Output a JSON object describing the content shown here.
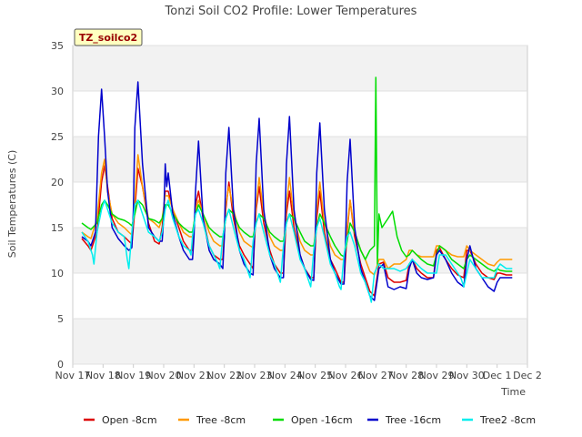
{
  "chart_data": {
    "type": "line",
    "title": "Tonzi Soil CO2 Profile: Lower Temperatures",
    "badge": "TZ_soilco2",
    "xlabel": "Time",
    "ylabel": "Soil Temperatures (C)",
    "xlim": [
      0,
      15
    ],
    "ylim": [
      0,
      35
    ],
    "x_ticks": [
      {
        "v": 0,
        "label": "Nov 17"
      },
      {
        "v": 1,
        "label": "Nov 18"
      },
      {
        "v": 2,
        "label": "Nov 19"
      },
      {
        "v": 3,
        "label": "Nov 20"
      },
      {
        "v": 4,
        "label": "Nov 21"
      },
      {
        "v": 5,
        "label": "Nov 22"
      },
      {
        "v": 6,
        "label": "Nov 23"
      },
      {
        "v": 7,
        "label": "Nov 24"
      },
      {
        "v": 8,
        "label": "Nov 25"
      },
      {
        "v": 9,
        "label": "Nov 26"
      },
      {
        "v": 10,
        "label": "Nov 27"
      },
      {
        "v": 11,
        "label": "Nov 28"
      },
      {
        "v": 12,
        "label": "Nov 29"
      },
      {
        "v": 13,
        "label": "Nov 30"
      },
      {
        "v": 14,
        "label": "Dec 1"
      },
      {
        "v": 15,
        "label": "Dec 2"
      }
    ],
    "y_ticks": [
      0,
      5,
      10,
      15,
      20,
      25,
      30,
      35
    ],
    "series": [
      {
        "name": "Open -8cm",
        "color": "#dd0000",
        "x": [
          0.3,
          0.5,
          0.6,
          0.8,
          0.95,
          1.05,
          1.15,
          1.3,
          1.5,
          1.7,
          1.85,
          1.95,
          2.05,
          2.15,
          2.3,
          2.5,
          2.7,
          2.85,
          2.95,
          3.05,
          3.15,
          3.3,
          3.5,
          3.65,
          3.85,
          3.95,
          4.05,
          4.15,
          4.3,
          4.5,
          4.65,
          4.85,
          4.95,
          5.05,
          5.15,
          5.3,
          5.5,
          5.65,
          5.85,
          5.95,
          6.05,
          6.15,
          6.3,
          6.5,
          6.65,
          6.85,
          6.95,
          7.05,
          7.15,
          7.3,
          7.5,
          7.65,
          7.85,
          7.95,
          8.05,
          8.15,
          8.3,
          8.5,
          8.65,
          8.85,
          8.95,
          9.05,
          9.15,
          9.3,
          9.5,
          9.65,
          9.8,
          9.95,
          10.1,
          10.25,
          10.4,
          10.6,
          10.8,
          11.0,
          11.1,
          11.2,
          11.35,
          11.5,
          11.7,
          11.9,
          12.0,
          12.1,
          12.3,
          12.5,
          12.7,
          12.9,
          13.0,
          13.1,
          13.3,
          13.5,
          13.7,
          13.9,
          14.0,
          14.1,
          14.3,
          14.5
        ],
        "y": [
          13.8,
          13.0,
          12.5,
          14.5,
          20.0,
          21.8,
          19.5,
          16.0,
          14.5,
          14.0,
          13.5,
          13.2,
          17.0,
          21.5,
          19.5,
          15.5,
          13.5,
          13.2,
          15.0,
          19.0,
          19.0,
          17.0,
          15.0,
          13.5,
          12.5,
          12.5,
          17.5,
          19.0,
          16.0,
          13.0,
          12.0,
          11.5,
          11.5,
          17.0,
          20.0,
          16.0,
          13.0,
          12.0,
          11.0,
          10.5,
          17.0,
          19.5,
          15.5,
          12.5,
          11.0,
          10.0,
          10.0,
          16.5,
          19.0,
          15.0,
          12.0,
          10.5,
          9.5,
          9.5,
          16.0,
          19.0,
          14.5,
          11.5,
          10.5,
          9.0,
          9.0,
          14.5,
          18.0,
          14.0,
          11.0,
          9.5,
          8.0,
          7.5,
          11.0,
          11.2,
          9.5,
          9.0,
          9.0,
          9.2,
          11.0,
          11.5,
          10.5,
          10.0,
          9.5,
          9.5,
          12.5,
          12.8,
          11.5,
          10.5,
          9.8,
          9.5,
          12.5,
          12.5,
          11.0,
          10.0,
          9.5,
          9.3,
          10.0,
          10.0,
          9.8,
          9.8
        ]
      },
      {
        "name": "Tree -8cm",
        "color": "#ff9900",
        "x": [
          0.3,
          0.5,
          0.6,
          0.8,
          0.95,
          1.05,
          1.15,
          1.3,
          1.5,
          1.7,
          1.85,
          1.95,
          2.05,
          2.15,
          2.3,
          2.5,
          2.7,
          2.85,
          2.95,
          3.05,
          3.15,
          3.3,
          3.5,
          3.65,
          3.85,
          3.95,
          4.05,
          4.15,
          4.3,
          4.5,
          4.65,
          4.85,
          4.95,
          5.05,
          5.15,
          5.3,
          5.5,
          5.65,
          5.85,
          5.95,
          6.05,
          6.15,
          6.3,
          6.5,
          6.65,
          6.85,
          6.95,
          7.05,
          7.15,
          7.3,
          7.5,
          7.65,
          7.85,
          7.95,
          8.05,
          8.15,
          8.3,
          8.5,
          8.65,
          8.85,
          8.95,
          9.05,
          9.15,
          9.3,
          9.5,
          9.65,
          9.8,
          9.95,
          10.1,
          10.25,
          10.4,
          10.6,
          10.8,
          11.0,
          11.1,
          11.2,
          11.35,
          11.5,
          11.7,
          11.9,
          12.0,
          12.1,
          12.3,
          12.5,
          12.7,
          12.9,
          13.0,
          13.1,
          13.3,
          13.5,
          13.7,
          13.9,
          14.0,
          14.1,
          14.3,
          14.5
        ],
        "y": [
          14.5,
          14.0,
          13.8,
          16.0,
          21.0,
          22.5,
          19.0,
          16.5,
          15.5,
          15.0,
          14.5,
          14.2,
          18.0,
          23.0,
          19.5,
          16.0,
          15.5,
          15.0,
          16.0,
          18.5,
          18.5,
          17.0,
          15.5,
          14.5,
          14.0,
          14.0,
          17.0,
          18.0,
          16.5,
          14.5,
          13.5,
          13.0,
          13.0,
          17.5,
          19.5,
          17.0,
          14.5,
          13.5,
          13.0,
          12.8,
          17.5,
          20.5,
          16.5,
          14.0,
          13.0,
          12.5,
          12.5,
          17.5,
          20.5,
          16.0,
          13.5,
          12.5,
          12.0,
          12.0,
          17.0,
          20.0,
          15.5,
          13.0,
          12.0,
          11.5,
          11.5,
          15.0,
          18.0,
          14.5,
          12.5,
          11.5,
          10.2,
          9.8,
          11.5,
          11.5,
          10.5,
          11.0,
          11.0,
          11.5,
          12.5,
          12.5,
          12.0,
          11.8,
          11.8,
          11.8,
          13.0,
          13.0,
          12.5,
          12.0,
          11.8,
          11.8,
          13.0,
          12.5,
          12.0,
          11.5,
          11.0,
          10.8,
          11.2,
          11.5,
          11.5,
          11.5
        ]
      },
      {
        "name": "Open -16cm",
        "color": "#00dd00",
        "x": [
          0.3,
          0.5,
          0.6,
          0.8,
          0.95,
          1.05,
          1.15,
          1.3,
          1.5,
          1.7,
          1.85,
          1.95,
          2.05,
          2.15,
          2.3,
          2.5,
          2.7,
          2.85,
          2.95,
          3.05,
          3.15,
          3.3,
          3.5,
          3.65,
          3.85,
          3.95,
          4.05,
          4.15,
          4.3,
          4.5,
          4.65,
          4.85,
          4.95,
          5.05,
          5.15,
          5.3,
          5.5,
          5.65,
          5.85,
          5.95,
          6.05,
          6.15,
          6.3,
          6.5,
          6.65,
          6.85,
          6.95,
          7.05,
          7.15,
          7.3,
          7.5,
          7.65,
          7.85,
          7.95,
          8.05,
          8.15,
          8.3,
          8.5,
          8.65,
          8.85,
          8.95,
          9.05,
          9.15,
          9.3,
          9.5,
          9.65,
          9.8,
          9.95,
          10.0,
          10.05,
          10.1,
          10.2,
          10.3,
          10.4,
          10.55,
          10.7,
          10.85,
          11.0,
          11.1,
          11.2,
          11.35,
          11.5,
          11.7,
          11.9,
          12.0,
          12.1,
          12.3,
          12.5,
          12.7,
          12.9,
          13.0,
          13.1,
          13.3,
          13.5,
          13.7,
          13.9,
          14.0,
          14.1,
          14.3,
          14.5
        ],
        "y": [
          15.5,
          15.0,
          14.8,
          15.5,
          17.5,
          18.0,
          17.5,
          16.5,
          16.0,
          15.8,
          15.5,
          15.2,
          16.5,
          18.0,
          17.5,
          16.0,
          15.8,
          15.5,
          16.0,
          17.5,
          17.5,
          16.5,
          15.5,
          15.0,
          14.5,
          14.5,
          16.5,
          17.5,
          16.5,
          15.0,
          14.5,
          14.0,
          14.0,
          16.0,
          17.0,
          16.5,
          15.0,
          14.5,
          14.0,
          14.0,
          15.5,
          16.5,
          16.0,
          14.5,
          14.0,
          13.5,
          13.5,
          15.5,
          16.5,
          16.0,
          14.5,
          13.5,
          13.0,
          13.0,
          15.0,
          16.5,
          15.5,
          14.0,
          13.0,
          12.0,
          11.8,
          13.5,
          15.5,
          14.5,
          12.5,
          11.5,
          12.5,
          13.0,
          31.5,
          11.0,
          16.5,
          15.0,
          15.5,
          16.0,
          16.8,
          14.0,
          12.5,
          11.8,
          12.0,
          12.5,
          12.0,
          11.5,
          11.0,
          10.8,
          12.0,
          13.0,
          12.5,
          11.5,
          11.0,
          10.5,
          11.5,
          12.0,
          11.5,
          11.0,
          10.5,
          10.2,
          10.5,
          10.3,
          10.2,
          10.2
        ]
      },
      {
        "name": "Tree -16cm",
        "color": "#0000cc",
        "x": [
          0.3,
          0.5,
          0.6,
          0.75,
          0.85,
          0.95,
          1.05,
          1.15,
          1.3,
          1.5,
          1.7,
          1.85,
          1.95,
          2.0,
          2.05,
          2.15,
          2.3,
          2.5,
          2.7,
          2.85,
          2.95,
          3.0,
          3.05,
          3.1,
          3.15,
          3.3,
          3.5,
          3.65,
          3.85,
          3.95,
          4.0,
          4.05,
          4.15,
          4.3,
          4.5,
          4.65,
          4.85,
          4.95,
          5.0,
          5.05,
          5.15,
          5.3,
          5.5,
          5.65,
          5.85,
          5.95,
          6.0,
          6.05,
          6.15,
          6.3,
          6.5,
          6.65,
          6.85,
          6.95,
          7.0,
          7.05,
          7.15,
          7.3,
          7.5,
          7.65,
          7.85,
          7.95,
          8.0,
          8.05,
          8.15,
          8.3,
          8.5,
          8.65,
          8.85,
          8.95,
          9.0,
          9.05,
          9.15,
          9.3,
          9.5,
          9.65,
          9.8,
          9.95,
          10.1,
          10.25,
          10.4,
          10.6,
          10.8,
          11.0,
          11.1,
          11.2,
          11.35,
          11.5,
          11.7,
          11.9,
          12.0,
          12.1,
          12.3,
          12.5,
          12.7,
          12.9,
          13.0,
          13.1,
          13.3,
          13.5,
          13.7,
          13.9,
          14.0,
          14.1,
          14.3,
          14.5
        ],
        "y": [
          14.0,
          13.5,
          13.0,
          14.5,
          25.0,
          30.2,
          25.0,
          19.0,
          15.0,
          13.8,
          13.0,
          12.5,
          12.8,
          17.0,
          26.0,
          31.0,
          22.0,
          15.0,
          14.0,
          13.5,
          13.5,
          16.0,
          22.0,
          19.5,
          21.0,
          16.5,
          14.0,
          12.5,
          11.5,
          11.5,
          14.0,
          19.0,
          24.5,
          16.0,
          12.5,
          11.5,
          11.0,
          10.5,
          14.0,
          21.0,
          26.0,
          17.0,
          12.5,
          11.0,
          10.0,
          9.8,
          15.0,
          22.0,
          27.0,
          17.0,
          12.0,
          10.5,
          9.5,
          9.5,
          15.0,
          22.0,
          27.2,
          17.0,
          12.0,
          10.5,
          9.3,
          9.2,
          14.0,
          21.0,
          26.5,
          17.0,
          11.5,
          10.0,
          8.8,
          8.8,
          13.5,
          20.0,
          24.7,
          15.0,
          10.5,
          9.0,
          7.5,
          7.0,
          10.5,
          11.0,
          8.5,
          8.2,
          8.5,
          8.3,
          10.5,
          11.5,
          10.0,
          9.5,
          9.3,
          9.5,
          12.0,
          12.5,
          11.5,
          10.0,
          9.0,
          8.5,
          11.5,
          13.0,
          10.5,
          9.5,
          8.5,
          8.0,
          9.0,
          9.5,
          9.5,
          9.5
        ]
      },
      {
        "name": "Tree2 -8cm",
        "color": "#00eeee",
        "x": [
          0.3,
          0.5,
          0.65,
          0.7,
          0.8,
          0.95,
          1.05,
          1.15,
          1.3,
          1.5,
          1.7,
          1.8,
          1.85,
          1.95,
          2.05,
          2.15,
          2.3,
          2.5,
          2.7,
          2.85,
          2.95,
          3.05,
          3.15,
          3.3,
          3.5,
          3.65,
          3.85,
          3.9,
          3.95,
          4.05,
          4.15,
          4.3,
          4.5,
          4.65,
          4.8,
          4.85,
          4.95,
          5.05,
          5.15,
          5.3,
          5.5,
          5.65,
          5.8,
          5.85,
          5.95,
          6.05,
          6.15,
          6.3,
          6.5,
          6.65,
          6.8,
          6.85,
          6.95,
          7.05,
          7.15,
          7.3,
          7.5,
          7.65,
          7.8,
          7.85,
          7.95,
          8.05,
          8.15,
          8.3,
          8.5,
          8.65,
          8.8,
          8.85,
          8.95,
          9.05,
          9.15,
          9.3,
          9.5,
          9.65,
          9.8,
          9.85,
          9.95,
          10.1,
          10.25,
          10.4,
          10.6,
          10.8,
          11.0,
          11.1,
          11.2,
          11.35,
          11.5,
          11.7,
          11.9,
          12.0,
          12.1,
          12.3,
          12.5,
          12.7,
          12.8,
          12.9,
          13.0,
          13.1,
          13.3,
          13.5,
          13.7,
          13.9,
          14.0,
          14.1,
          14.3,
          14.5
        ],
        "y": [
          14.5,
          13.5,
          12.0,
          11.0,
          14.5,
          17.0,
          18.0,
          17.0,
          15.5,
          14.5,
          14.0,
          11.5,
          10.5,
          14.5,
          17.5,
          18.0,
          16.5,
          14.5,
          14.0,
          13.5,
          14.5,
          17.0,
          18.0,
          16.0,
          14.0,
          13.0,
          12.5,
          12.0,
          14.0,
          16.5,
          17.0,
          15.5,
          13.0,
          12.0,
          11.0,
          10.5,
          14.0,
          16.0,
          17.0,
          15.0,
          12.5,
          11.5,
          10.0,
          9.5,
          13.5,
          15.5,
          16.5,
          14.5,
          12.0,
          11.0,
          9.5,
          9.0,
          13.0,
          15.5,
          16.5,
          14.5,
          11.5,
          10.5,
          9.0,
          8.5,
          12.5,
          15.0,
          16.0,
          14.0,
          11.0,
          10.0,
          8.5,
          8.2,
          12.0,
          14.0,
          14.5,
          13.0,
          10.0,
          9.0,
          7.5,
          6.8,
          10.0,
          11.0,
          10.5,
          10.5,
          10.5,
          10.2,
          10.5,
          11.0,
          11.5,
          11.0,
          10.5,
          10.0,
          10.0,
          10.0,
          12.0,
          12.0,
          11.0,
          10.0,
          9.5,
          8.5,
          10.0,
          11.5,
          10.5,
          9.5,
          9.5,
          9.5,
          10.5,
          11.0,
          10.5,
          10.5
        ]
      }
    ],
    "grid": true,
    "legend_position": "bottom"
  }
}
